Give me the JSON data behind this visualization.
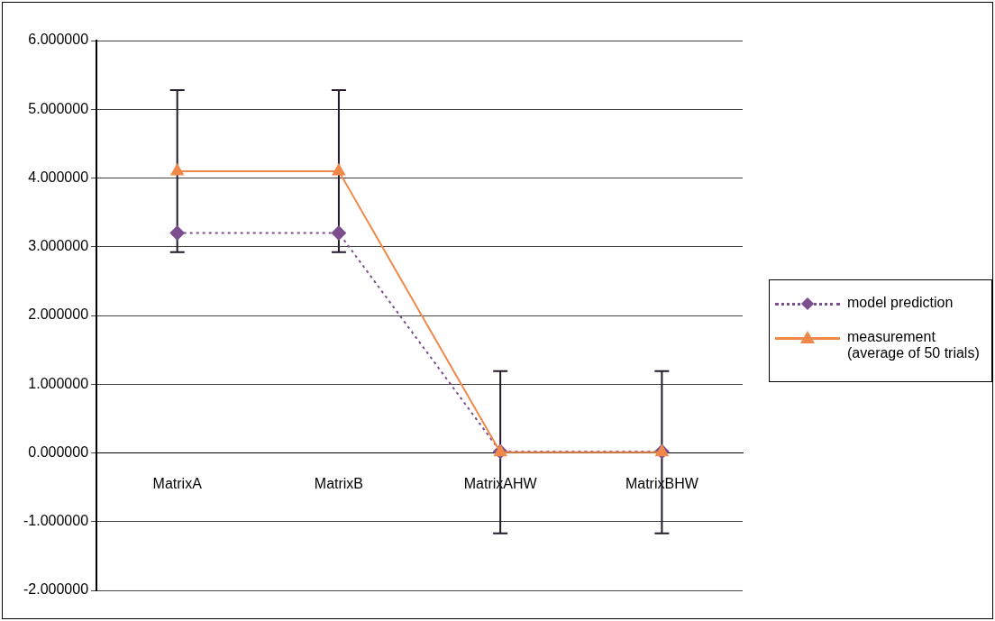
{
  "chart_data": {
    "type": "line",
    "categories": [
      "MatrixA",
      "MatrixB",
      "MatrixAHW",
      "MatrixBHW"
    ],
    "series": [
      {
        "name": "model prediction",
        "color": "#7b4f8e",
        "values": [
          3.2,
          3.2,
          0.02,
          0.02
        ],
        "marker": "diamond",
        "line_style": "dotted"
      },
      {
        "name": "measurement (average of 50 trials)",
        "color": "#f0884a",
        "values": [
          4.1,
          4.1,
          0.01,
          0.01
        ],
        "marker": "triangle",
        "line_style": "solid",
        "errors": [
          1.18,
          1.18,
          1.18,
          1.18
        ]
      }
    ],
    "ylim": [
      -2,
      6
    ],
    "yticks": [
      {
        "value": -2,
        "label": "-2.000000"
      },
      {
        "value": -1,
        "label": "-1.000000"
      },
      {
        "value": 0,
        "label": "0.000000"
      },
      {
        "value": 1,
        "label": "1.000000"
      },
      {
        "value": 2,
        "label": "2.000000"
      },
      {
        "value": 3,
        "label": "3.000000"
      },
      {
        "value": 4,
        "label": "4.000000"
      },
      {
        "value": 5,
        "label": "5.000000"
      },
      {
        "value": 6,
        "label": "6.000000"
      }
    ],
    "grid": "y",
    "legend": "right"
  }
}
